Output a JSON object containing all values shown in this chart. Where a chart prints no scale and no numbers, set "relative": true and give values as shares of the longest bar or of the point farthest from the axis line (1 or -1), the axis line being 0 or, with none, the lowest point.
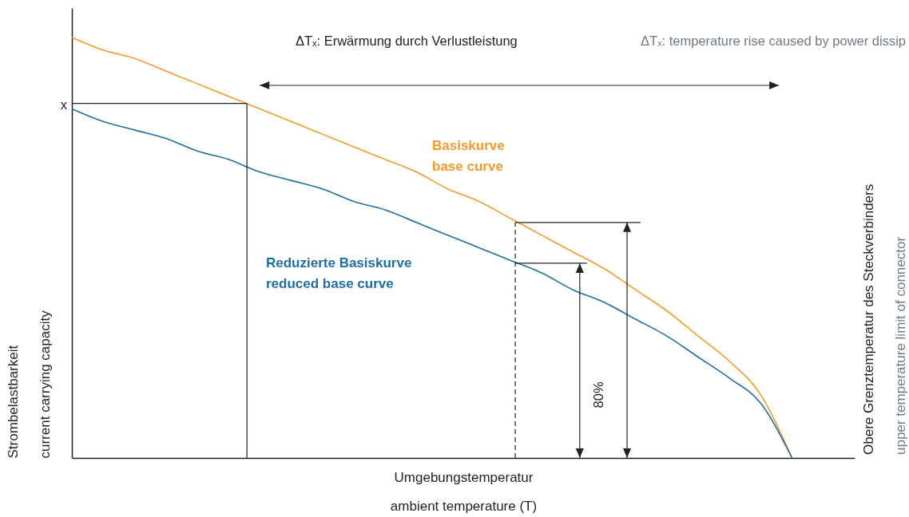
{
  "chart_data": {
    "type": "line",
    "relative": true,
    "categories": [
      null,
      null,
      null,
      null,
      null,
      null,
      null,
      null,
      null,
      null,
      null,
      null,
      null,
      null,
      null,
      null,
      null,
      null,
      null,
      null,
      null,
      null,
      null,
      null,
      null,
      null
    ],
    "series": [
      {
        "name": "Basiskurve\nbase curve",
        "color": "#f39a2b",
        "values": [
          1.0,
          0.97,
          0.95,
          0.92,
          0.89,
          0.86,
          0.83,
          0.8,
          0.77,
          0.74,
          0.71,
          0.68,
          0.64,
          0.61,
          0.57,
          0.53,
          0.49,
          0.45,
          0.4,
          0.35,
          0.29,
          0.23,
          0.15,
          0,
          null,
          null
        ]
      },
      {
        "name": "Reduzierte Basiskurve\nreduced base curve",
        "color": "#1f6ea3",
        "values": [
          0.83,
          0.8,
          0.78,
          0.76,
          0.73,
          0.71,
          0.68,
          0.66,
          0.64,
          0.61,
          0.59,
          0.56,
          0.53,
          0.5,
          0.47,
          0.44,
          0.4,
          0.37,
          0.33,
          0.29,
          0.24,
          0.19,
          0.13,
          0,
          null,
          null
        ]
      }
    ],
    "xlabel": "Umgebungstemperatur\nambient temperature (T)",
    "ylabel": "Strombelastbarkeit\ncurrent carrying capacity",
    "y2label": "Obere Grenztemperatur des Steckverbinders\nupper temperature limit of connector",
    "annotations": [
      "ΔTₓ: Erwärmung durch Verlustleistung",
      "ΔTₓ: temperature rise caused by power dissip",
      "x",
      "80%"
    ],
    "marker": "none",
    "line_style": "solid"
  }
}
